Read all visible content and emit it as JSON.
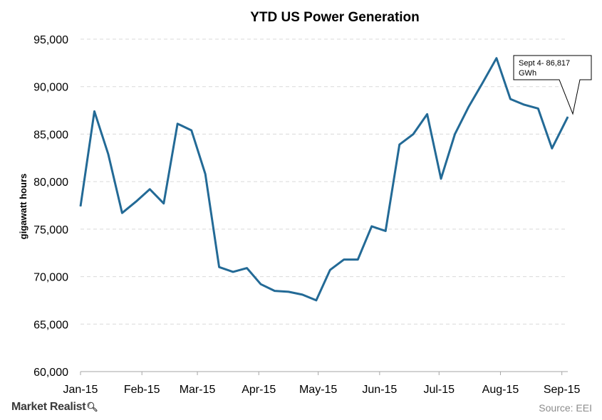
{
  "chart_data": {
    "type": "line",
    "title": "YTD US Power Generation",
    "ylabel": "gigawatt hours",
    "xlabel": "",
    "ylim": [
      60000,
      95000
    ],
    "yticks": [
      "60,000",
      "65,000",
      "70,000",
      "75,000",
      "80,000",
      "85,000",
      "90,000",
      "95,000"
    ],
    "ytick_values": [
      60000,
      65000,
      70000,
      75000,
      80000,
      85000,
      90000,
      95000
    ],
    "xtick_labels": [
      "Jan-15",
      "Feb-15",
      "Mar-15",
      "Apr-15",
      "May-15",
      "Jun-15",
      "Jul-15",
      "Aug-15",
      "Sep-15"
    ],
    "xtick_dates": [
      "2015-01-01",
      "2015-02-01",
      "2015-03-01",
      "2015-04-01",
      "2015-05-01",
      "2015-06-01",
      "2015-07-01",
      "2015-08-01",
      "2015-09-01"
    ],
    "grid": true,
    "series": [
      {
        "color": "#236a96",
        "points": [
          {
            "x": "2015-01-01",
            "y": 77400
          },
          {
            "x": "2015-01-08",
            "y": 87400
          },
          {
            "x": "2015-01-15",
            "y": 82900
          },
          {
            "x": "2015-01-22",
            "y": 76700
          },
          {
            "x": "2015-01-29",
            "y": 77900
          },
          {
            "x": "2015-02-05",
            "y": 79200
          },
          {
            "x": "2015-02-12",
            "y": 77700
          },
          {
            "x": "2015-02-19",
            "y": 86100
          },
          {
            "x": "2015-02-26",
            "y": 85400
          },
          {
            "x": "2015-03-05",
            "y": 80800
          },
          {
            "x": "2015-03-12",
            "y": 71000
          },
          {
            "x": "2015-03-19",
            "y": 70500
          },
          {
            "x": "2015-03-26",
            "y": 70900
          },
          {
            "x": "2015-04-02",
            "y": 69200
          },
          {
            "x": "2015-04-09",
            "y": 68500
          },
          {
            "x": "2015-04-16",
            "y": 68400
          },
          {
            "x": "2015-04-23",
            "y": 68100
          },
          {
            "x": "2015-04-30",
            "y": 67500
          },
          {
            "x": "2015-05-07",
            "y": 70700
          },
          {
            "x": "2015-05-14",
            "y": 71800
          },
          {
            "x": "2015-05-21",
            "y": 71800
          },
          {
            "x": "2015-05-28",
            "y": 75300
          },
          {
            "x": "2015-06-04",
            "y": 74800
          },
          {
            "x": "2015-06-11",
            "y": 83900
          },
          {
            "x": "2015-06-18",
            "y": 85000
          },
          {
            "x": "2015-06-25",
            "y": 87100
          },
          {
            "x": "2015-07-02",
            "y": 80300
          },
          {
            "x": "2015-07-09",
            "y": 85000
          },
          {
            "x": "2015-07-16",
            "y": 87900
          },
          {
            "x": "2015-07-23",
            "y": 90400
          },
          {
            "x": "2015-07-30",
            "y": 93000
          },
          {
            "x": "2015-08-06",
            "y": 88700
          },
          {
            "x": "2015-08-13",
            "y": 88100
          },
          {
            "x": "2015-08-20",
            "y": 87700
          },
          {
            "x": "2015-08-27",
            "y": 83500
          },
          {
            "x": "2015-09-04",
            "y": 86817
          }
        ]
      }
    ],
    "annotations": [
      {
        "text_line1": "Sept 4- 86,817",
        "text_line2": "GWh",
        "x": "2015-09-04",
        "y": 86817
      }
    ]
  },
  "footer": {
    "brand": "Market Realist",
    "source": "Source: EEI"
  }
}
